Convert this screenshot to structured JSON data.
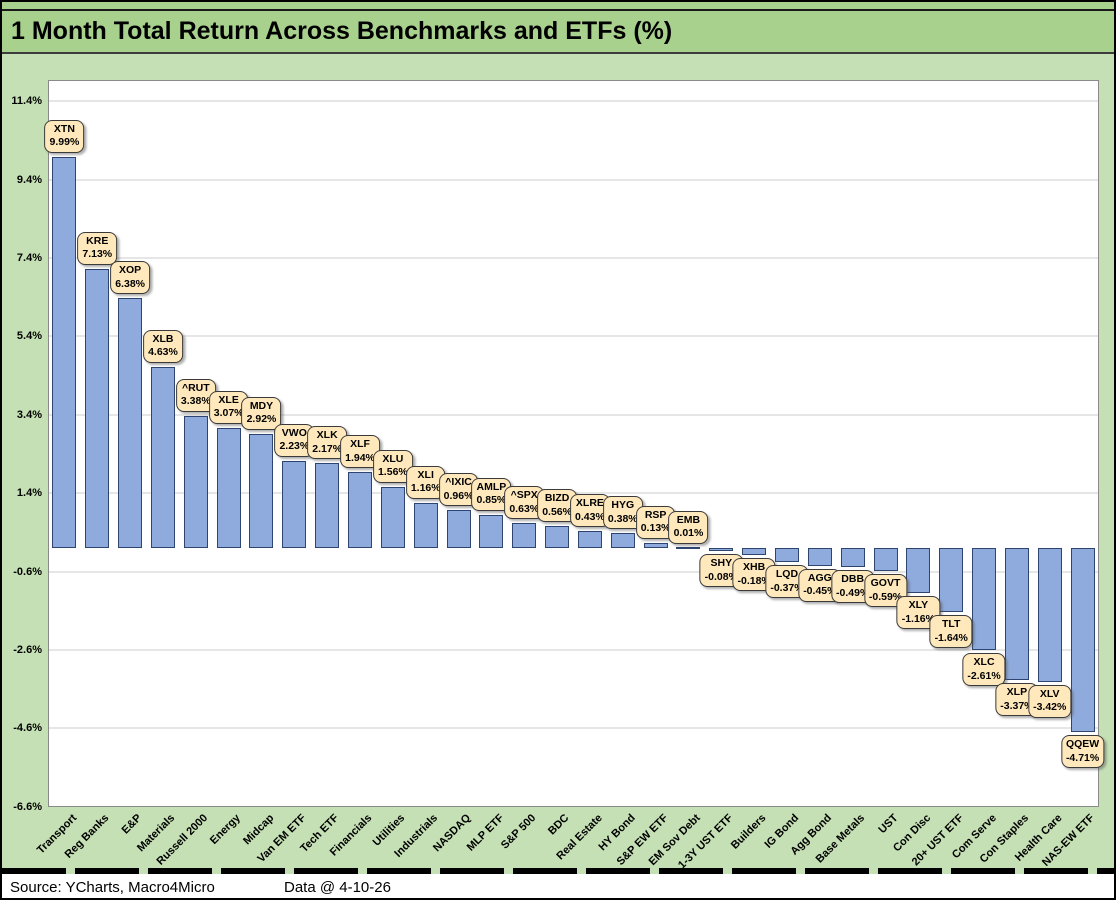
{
  "header": {
    "title": "1 Month Total Return Across Benchmarks and ETFs (%)"
  },
  "footer": {
    "source": "Source: YCharts, Macro4Micro",
    "data_date": "Data @ 4-10-26"
  },
  "colors": {
    "title_bg": "#A9D18E",
    "chart_bg": "#C5E0B4",
    "plot_bg": "#FFFFFF",
    "bar_fill": "#8FAADC",
    "bar_border": "#2E4570",
    "callout_fill": "#FFE9BC",
    "callout_border": "#3A3A3A",
    "gridline": "#E6E6E6"
  },
  "chart_data": {
    "type": "bar",
    "title": "1 Month Total Return Across Benchmarks and ETFs (%)",
    "xlabel": "",
    "ylabel": "",
    "ylim": [
      -6.6,
      12.0
    ],
    "grid": true,
    "legend": false,
    "yticks": [
      11.4,
      9.4,
      7.4,
      5.4,
      3.4,
      1.4,
      -0.6,
      -2.6,
      -4.6,
      -6.6
    ],
    "ytick_labels": [
      "11.4%",
      "9.4%",
      "7.4%",
      "5.4%",
      "3.4%",
      "1.4%",
      "-0.6%",
      "-2.6%",
      "-4.6%",
      "-6.6%"
    ],
    "categories": [
      "Transport",
      "Reg Banks",
      "E&P",
      "Materials",
      "Russell 2000",
      "Energy",
      "Midcap",
      "Van EM ETF",
      "Tech ETF",
      "Financials",
      "Utilities",
      "Industrials",
      "NASDAQ",
      "MLP ETF",
      "S&P 500",
      "BDC",
      "Real Estate",
      "HY Bond",
      "S&P EW ETF",
      "EM Sov Debt",
      "1-3Y UST ETF",
      "Builders",
      "IG Bond",
      "Agg Bond",
      "Base Metals",
      "UST",
      "Con Disc",
      "20+ UST ETF",
      "Com Serve",
      "Con Staples",
      "Health Care",
      "NAS-EW ETF"
    ],
    "tickers": [
      "XTN",
      "KRE",
      "XOP",
      "XLB",
      "^RUT",
      "XLE",
      "MDY",
      "VWO",
      "XLK",
      "XLF",
      "XLU",
      "XLI",
      "^IXIC",
      "AMLP",
      "^SPX",
      "BIZD",
      "XLRE",
      "HYG",
      "RSP",
      "EMB",
      "SHY",
      "XHB",
      "LQD",
      "AGG",
      "DBB",
      "GOVT",
      "XLY",
      "TLT",
      "XLC",
      "XLP",
      "XLV",
      "QQEW"
    ],
    "values": [
      9.99,
      7.13,
      6.38,
      4.63,
      3.38,
      3.07,
      2.92,
      2.23,
      2.17,
      1.94,
      1.56,
      1.16,
      0.96,
      0.85,
      0.63,
      0.56,
      0.43,
      0.38,
      0.13,
      0.01,
      -0.08,
      -0.18,
      -0.37,
      -0.45,
      -0.49,
      -0.59,
      -1.16,
      -1.64,
      -2.61,
      -3.37,
      -3.42,
      -4.71
    ],
    "value_labels": [
      "9.99%",
      "7.13%",
      "6.38%",
      "4.63%",
      "3.38%",
      "3.07%",
      "2.92%",
      "2.23%",
      "2.17%",
      "1.94%",
      "1.56%",
      "1.16%",
      "0.96%",
      "0.85%",
      "0.63%",
      "0.56%",
      "0.43%",
      "0.38%",
      "0.13%",
      "0.01%",
      "-0.08%",
      "-0.18%",
      "-0.37%",
      "-0.45%",
      "-0.49%",
      "-0.59%",
      "-1.16%",
      "-1.64%",
      "-2.61%",
      "-3.37%",
      "-3.42%",
      "-4.71%"
    ]
  }
}
